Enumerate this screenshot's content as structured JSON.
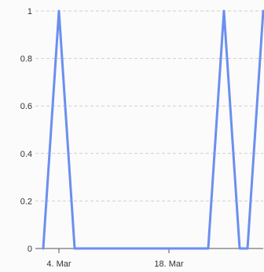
{
  "chart_data": {
    "type": "line",
    "title": "",
    "xlabel": "",
    "ylabel": "",
    "x_axis": {
      "type": "date",
      "range": [
        "2024-03-01",
        "2024-03-30"
      ],
      "tick_dates": [
        "2024-03-04",
        "2024-03-18"
      ],
      "tick_labels": [
        "4. Mar",
        "18. Mar"
      ]
    },
    "y_axis": {
      "range": [
        0,
        1
      ],
      "ticks": [
        0,
        0.2,
        0.4,
        0.6,
        0.8,
        1
      ],
      "tick_labels": [
        "0",
        "0.2",
        "0.4",
        "0.6",
        "0.8",
        "1"
      ]
    },
    "grid": true,
    "legend": "none",
    "series": [
      {
        "color": "#6b8ff0",
        "x": [
          "2024-03-02",
          "2024-03-03",
          "2024-03-04",
          "2024-03-05",
          "2024-03-06",
          "2024-03-07",
          "2024-03-08",
          "2024-03-09",
          "2024-03-10",
          "2024-03-11",
          "2024-03-12",
          "2024-03-13",
          "2024-03-14",
          "2024-03-15",
          "2024-03-16",
          "2024-03-17",
          "2024-03-18",
          "2024-03-19",
          "2024-03-20",
          "2024-03-21",
          "2024-03-22",
          "2024-03-23",
          "2024-03-24",
          "2024-03-25",
          "2024-03-26",
          "2024-03-27",
          "2024-03-28",
          "2024-03-29",
          "2024-03-30"
        ],
        "y": [
          0,
          0.5,
          1,
          0.5,
          0,
          0,
          0,
          0,
          0,
          0,
          0,
          0,
          0,
          0,
          0,
          0,
          0,
          0,
          0,
          0,
          0,
          0,
          0.5,
          1,
          0.5,
          0,
          0,
          0.5,
          1
        ]
      }
    ]
  }
}
